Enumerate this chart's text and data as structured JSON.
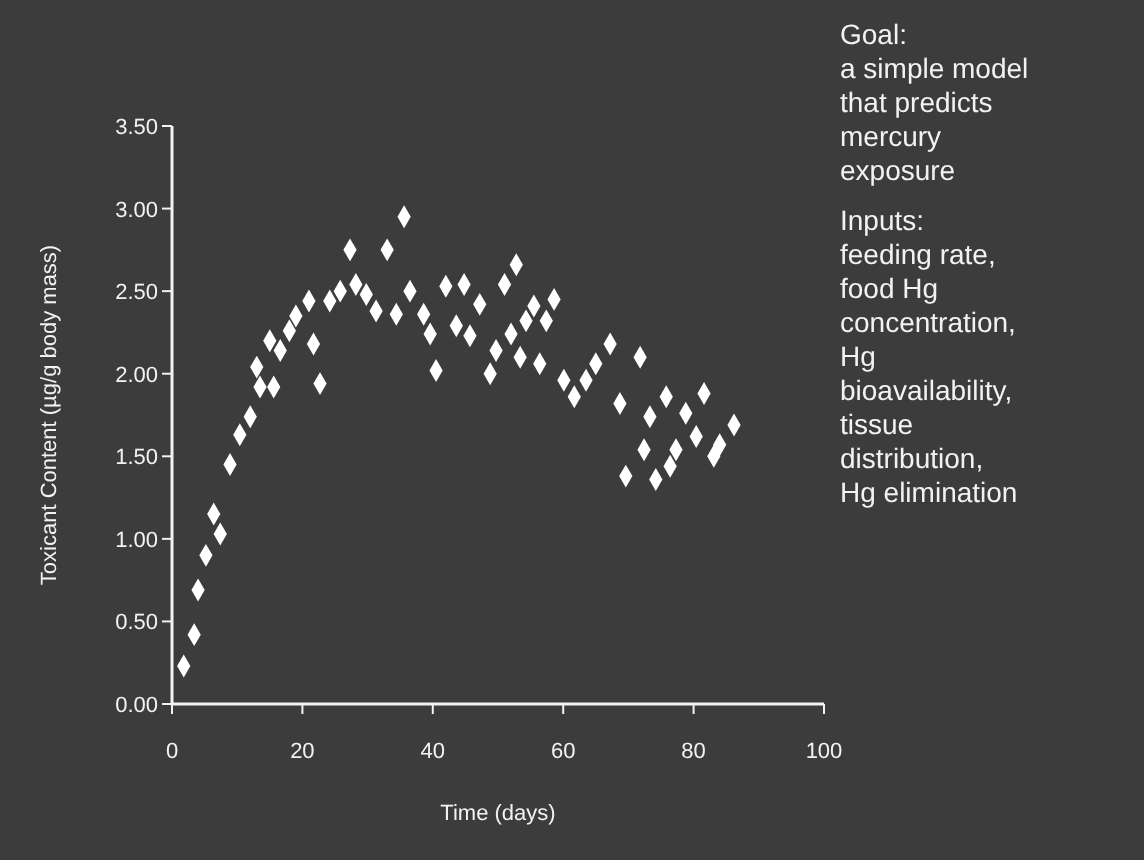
{
  "chart_data": {
    "type": "scatter",
    "xlabel": "Time (days)",
    "ylabel": "Toxicant Content (µg/g body mass)",
    "xlim": [
      0,
      100
    ],
    "xticks": [
      0,
      20,
      40,
      60,
      80,
      100
    ],
    "ylim": [
      0,
      3.5
    ],
    "yticks": [
      {
        "value": 0,
        "label": "0.00"
      },
      {
        "value": 0.5,
        "label": "0.50"
      },
      {
        "value": 1,
        "label": "1.00"
      },
      {
        "value": 1.5,
        "label": "1.50"
      },
      {
        "value": 2,
        "label": "2.00"
      },
      {
        "value": 2.5,
        "label": "2.50"
      },
      {
        "value": 3,
        "label": "3.00"
      },
      {
        "value": 3.5,
        "label": "3.50"
      }
    ],
    "marker": "diamond",
    "grid": false,
    "series": [
      {
        "color": "#ffffff",
        "x": [
          1.8,
          3.4,
          4,
          5.2,
          6.4,
          7.4,
          8.9,
          10.4,
          12,
          13,
          13.5,
          15.6,
          15,
          16.6,
          18,
          19,
          21,
          21.7,
          22.7,
          24.2,
          25.8,
          27.3,
          28.2,
          29.8,
          31.3,
          33,
          34.4,
          35.6,
          36.5,
          38.6,
          39.6,
          40.5,
          42,
          43.6,
          52.8,
          44.8,
          51,
          47.2,
          58.6,
          55.5,
          54.3,
          57.4,
          45.7,
          52,
          49.7,
          53.4,
          56.4,
          48.8,
          67.2,
          71.8,
          65,
          60.1,
          63.5,
          61.7,
          68.7,
          75.8,
          81.6,
          73.3,
          78.8,
          86.2,
          80.4,
          84,
          72.4,
          77.3,
          83.1,
          76.4,
          69.6,
          74.2
        ],
        "values": [
          0.23,
          0.42,
          0.69,
          0.9,
          1.15,
          1.03,
          1.45,
          1.63,
          1.74,
          2.04,
          1.92,
          1.92,
          2.2,
          2.14,
          2.26,
          2.35,
          2.44,
          2.18,
          1.94,
          2.44,
          2.5,
          2.75,
          2.54,
          2.48,
          2.38,
          2.75,
          2.36,
          2.95,
          2.5,
          2.36,
          2.24,
          2.02,
          2.53,
          2.29,
          2.66,
          2.54,
          2.54,
          2.42,
          2.45,
          2.41,
          2.32,
          2.32,
          2.23,
          2.24,
          2.14,
          2.1,
          2.06,
          2,
          2.18,
          2.1,
          2.06,
          1.96,
          1.96,
          1.86,
          1.82,
          1.86,
          1.88,
          1.74,
          1.76,
          1.69,
          1.62,
          1.57,
          1.54,
          1.54,
          1.5,
          1.44,
          1.38,
          1.36
        ]
      }
    ],
    "annotations": [
      "Goal:\na simple model that predicts mercury exposure",
      "Inputs:\nfeeding rate, food Hg concentration, Hg bioavailability, tissue distribution, Hg elimination"
    ]
  }
}
